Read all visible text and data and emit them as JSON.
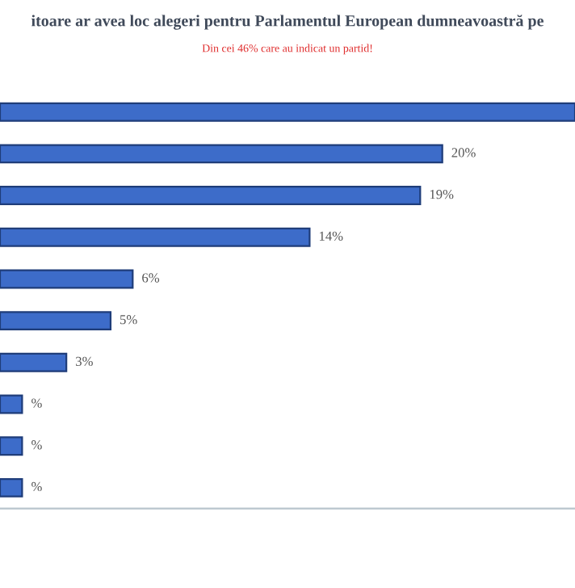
{
  "chart_data": {
    "type": "bar",
    "orientation": "horizontal",
    "title": "itoare ar avea loc alegeri pentru Parlamentul European dumneavoastră pe",
    "subtitle": "Din cei 46% care au indicat un partid!",
    "categories": [
      null,
      null,
      null,
      null,
      null,
      null,
      null,
      null,
      null,
      null
    ],
    "values": [
      26,
      20,
      19,
      14,
      6,
      5,
      3,
      1,
      1,
      1
    ],
    "value_labels": [
      null,
      "20%",
      "19%",
      "14%",
      "6%",
      "5%",
      "3%",
      "%",
      "%",
      "%"
    ],
    "color": "#3d6cc9",
    "xlim": [
      0,
      26
    ],
    "grid": false
  }
}
